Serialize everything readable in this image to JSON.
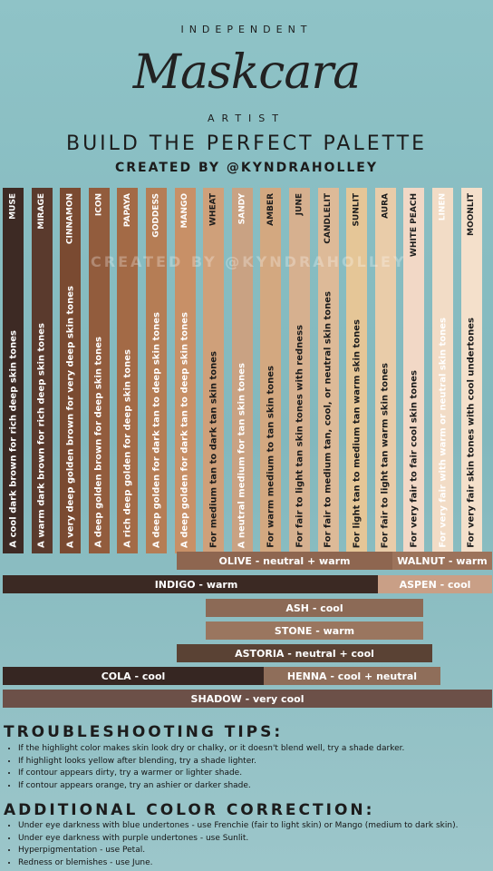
{
  "brand": {
    "top": "INDEPENDENT",
    "script": "Maskcara",
    "bottom": "ARTIST"
  },
  "header": {
    "title": "BUILD THE PERFECT PALETTE",
    "subtitle": "CREATED BY @KYNDRAHOLLEY",
    "watermark": "CREATED BY @KYNDRAHOLLEY"
  },
  "shades": [
    {
      "name": "MUSE",
      "desc": "A cool dark brown for rich deep skin tones",
      "color": "#3d2a24",
      "text": "light"
    },
    {
      "name": "MIRAGE",
      "desc": "A warm dark brown for rich deep skin tones",
      "color": "#5a3a2d",
      "text": "light"
    },
    {
      "name": "CINNAMON",
      "desc": "A very deep golden brown for very deep skin tones",
      "color": "#7a4a31",
      "text": "light"
    },
    {
      "name": "ICON",
      "desc": "A deep golden brown for deep skin tones",
      "color": "#925c3d",
      "text": "light"
    },
    {
      "name": "PAPAYA",
      "desc": "A rich deep golden for deep skin tones",
      "color": "#a36a46",
      "text": "light"
    },
    {
      "name": "GODDESS",
      "desc": "A deep golden for dark tan to deep skin tones",
      "color": "#b57d55",
      "text": "light"
    },
    {
      "name": "MANGO",
      "desc": "A deep golden for dark tan to deep skin tones",
      "color": "#c89067",
      "text": "light"
    },
    {
      "name": "WHEAT",
      "desc": "For medium tan to dark tan skin tones",
      "color": "#cfa07a",
      "text": "dark"
    },
    {
      "name": "SANDY",
      "desc": "A neutral medium for tan skin tones",
      "color": "#c9a283",
      "text": "light"
    },
    {
      "name": "AMBER",
      "desc": "For warm medium to tan skin tones",
      "color": "#d3a880",
      "text": "dark"
    },
    {
      "name": "JUNE",
      "desc": "For fair to light tan skin tones with redness",
      "color": "#d6b08f",
      "text": "dark"
    },
    {
      "name": "CANDLELIT",
      "desc": "For fair to medium tan, cool, or neutral skin tones",
      "color": "#ddba98",
      "text": "dark"
    },
    {
      "name": "SUNLIT",
      "desc": "For light tan to medium tan warm skin tones",
      "color": "#e5c697",
      "text": "dark"
    },
    {
      "name": "AURA",
      "desc": "For fair to light tan warm skin tones",
      "color": "#e9cca9",
      "text": "dark"
    },
    {
      "name": "WHITE PEACH",
      "desc": "For very fair to fair cool skin tones",
      "color": "#f2d8c6",
      "text": "dark"
    },
    {
      "name": "LINEN",
      "desc": "For very fair with warm or neutral skin tones",
      "color": "#f2dcc6",
      "text": "light"
    },
    {
      "name": "MOONLIT",
      "desc": "For very fair skin tones with cool undertones",
      "color": "#f4e0cb",
      "text": "dark"
    }
  ],
  "combos": [
    {
      "label": "OLIVE - neutral + warm",
      "color": "#8e6650"
    },
    {
      "label": "WALNUT - warm",
      "color": "#9c735b"
    },
    {
      "label": "INDIGO - warm",
      "color": "#3b2923"
    },
    {
      "label": "ASPEN - cool",
      "color": "#c99f86"
    },
    {
      "label": "ASH - cool",
      "color": "#8c6a56"
    },
    {
      "label": "STONE - warm",
      "color": "#9a765f"
    },
    {
      "label": "ASTORIA - neutral + cool",
      "color": "#5a4234"
    },
    {
      "label": "COLA - cool",
      "color": "#362622"
    },
    {
      "label": "HENNA - cool + neutral",
      "color": "#8f6e5a"
    },
    {
      "label": "SHADOW - very cool",
      "color": "#6c5048"
    }
  ],
  "troubleshooting": {
    "title": "TROUBLESHOOTING TIPS:",
    "items": [
      "If the highlight color makes skin look dry or chalky, or it doesn't blend well, try a shade darker.",
      "If highlight looks yellow after blending, try a shade lighter.",
      "If contour appears dirty, try a warmer or lighter shade.",
      "If contour appears orange, try an ashier or darker shade."
    ]
  },
  "correction": {
    "title": "ADDITIONAL COLOR CORRECTION:",
    "items": [
      "Under eye darkness with blue undertones - use Frenchie (fair to light skin) or Mango (medium to dark skin).",
      "Under eye darkness with purple undertones - use Sunlit.",
      "Hyperpigmentation - use Petal.",
      "Redness or blemishes - use June."
    ]
  }
}
